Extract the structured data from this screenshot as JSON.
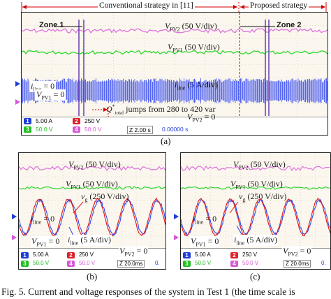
{
  "fig_a": {
    "banner_left": "Conventional strategy in [11]",
    "banner_right": "Proposed strategy",
    "zone1": "Zone 1",
    "zone2": "Zone 2",
    "vpv2": "V",
    "vpv2_sub": "PV2",
    "vpv2_scale": "(50 V/div)",
    "vpv1": "V",
    "vpv1_sub": "PV1",
    "vpv1_scale": "(50 V/div)",
    "iline": "i",
    "iline_sub": "line",
    "iline_scale": "(5 A/div)",
    "iline_zero": "= 0",
    "vpv1_zero_sym": "V",
    "vpv1_zero_sub": "PV1",
    "vpv1_zero": "= 0",
    "vpv2_zero_sym": "V",
    "vpv2_zero_sub": "PV2",
    "vpv2_zero": "= 0",
    "q_jump_sym": "Q",
    "q_jump_sub": "total",
    "q_jump_sup": "*",
    "q_jump": "jumps from 280 to 420 var",
    "ch1": "5.00 A",
    "ch2": "250 V",
    "ch3": "50.0 V",
    "ch4": "50.0 V",
    "timebase": "Z 2.00 s",
    "time": "0.00000 s",
    "caption": "(a)"
  },
  "fig_b": {
    "vpv2": "V",
    "vpv2_sub": "PV2",
    "vpv2_scale": "(50 V/div)",
    "vpv1": "V",
    "vpv1_sub": "PV1",
    "vpv1_scale": "(50 V/div)",
    "vg": "v",
    "vg_sub": "g",
    "vg_scale": "(250 V/div)",
    "iline_zero_sym": "i",
    "iline_zero_sub": "line",
    "iline_zero": "= 0",
    "iline": "i",
    "iline_sub": "line",
    "iline_scale": "(5 A/div)",
    "vpv1_zero_sym": "V",
    "vpv1_zero_sub": "PV1",
    "vpv1_zero": "= 0",
    "vpv2_zero_sym": "V",
    "vpv2_zero_sub": "PV2",
    "vpv2_zero": "= 0",
    "ch1": "5.00 A",
    "ch2": "250 V",
    "ch3": "50.0 V",
    "ch4": "50.0 V",
    "timebase": "Z 20.0ms",
    "time_frag": "0.",
    "caption": "(b)"
  },
  "fig_c": {
    "vpv2": "V",
    "vpv2_sub": "PV2",
    "vpv2_scale": "(50 V/div)",
    "vpv1": "V",
    "vpv1_sub": "PV1",
    "vpv1_scale": "(50 V/div)",
    "vg": "v",
    "vg_sub": "g",
    "vg_scale": "(250 V/div)",
    "iline_zero_sym": "i",
    "iline_zero_sub": "line",
    "iline_zero": "= 0",
    "iline": "i",
    "iline_sub": "line",
    "iline_scale": "(5 A/div)",
    "vpv1_zero_sym": "V",
    "vpv1_zero_sub": "PV1",
    "vpv1_zero": "= 0",
    "vpv2_zero_sym": "V",
    "vpv2_zero_sub": "PV2",
    "vpv2_zero": "= 0",
    "ch1": "5.00 A",
    "ch2": "250 V",
    "ch3": "50.0 V",
    "ch4": "50.0 V",
    "timebase": "Z 20.0ms",
    "time_frag": "0.",
    "caption": "(c)"
  },
  "figure_caption": "Fig. 5. Current and voltage responses of the system in Test 1 (the time scale is",
  "colors": {
    "ch1": "#1f3fd8",
    "ch2": "#e0202a",
    "ch3": "#1fbf1f",
    "ch4": "#d65ad6",
    "trace_blue": "#2a3ff0",
    "trace_green": "#2fd62f",
    "trace_pink": "#e070e0",
    "trace_red": "#e02020",
    "zone_line": "#6a3bb5"
  }
}
